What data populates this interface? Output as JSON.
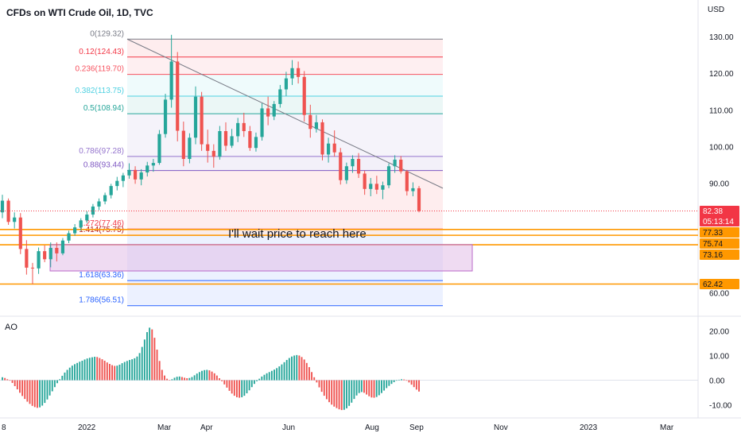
{
  "chart_data": {
    "type": "candlestick",
    "title": "CFDs on WTI Crude Oil, 1D, TVC",
    "currency": "USD",
    "colors": {
      "up": "#26a69a",
      "down": "#ef5350",
      "orange": "#ff9800",
      "last": "#f23645"
    },
    "price_axis": {
      "range": [
        54.5,
        133.5
      ],
      "ticks": [
        "60.00",
        "90.00",
        "100.00",
        "110.00",
        "120.00",
        "130.00"
      ]
    },
    "time_axis": {
      "labels": [
        "8",
        "2022",
        "Mar",
        "Apr",
        "Jun",
        "Aug",
        "Sep",
        "Nov",
        "2023",
        "Mar"
      ]
    },
    "fibonacci": [
      {
        "label": "0(129.32)",
        "value": 129.32,
        "color": "#787b86"
      },
      {
        "label": "0.12(124.43)",
        "value": 124.43,
        "color": "#f23645"
      },
      {
        "label": "0.236(119.70)",
        "value": 119.7,
        "color": "#f7525f"
      },
      {
        "label": "0.382(113.75)",
        "value": 113.75,
        "color": "#4dd0e1"
      },
      {
        "label": "0.5(108.94)",
        "value": 108.94,
        "color": "#26a69a"
      },
      {
        "label": "0.786(97.28)",
        "value": 97.28,
        "color": "#9575cd"
      },
      {
        "label": "0.88(93.44)",
        "value": 93.44,
        "color": "#7e57c2"
      },
      {
        "label": "1.272(77.46)",
        "value": 77.46,
        "color": "#f23645"
      },
      {
        "label": "1.414(75.75)",
        "value": 75.75,
        "color": "#b71c1c"
      },
      {
        "label": "1.618(63.36)",
        "value": 63.36,
        "color": "#2962ff"
      },
      {
        "label": "1.786(56.51)",
        "value": 56.51,
        "color": "#2962ff"
      }
    ],
    "horizontal_levels": [
      77.33,
      75.74,
      73.16,
      62.42
    ],
    "price_tags": [
      {
        "value": 82.38,
        "label": "82.38",
        "sublabel": "05:13:14",
        "color": "#f23645"
      },
      {
        "value": 77.33,
        "label": "77.33",
        "color": "#ff9800"
      },
      {
        "value": 75.74,
        "label": "75.74",
        "color": "#ff9800"
      },
      {
        "value": 73.16,
        "label": "73.16",
        "color": "#ff9800"
      },
      {
        "value": 62.42,
        "label": "62.42",
        "color": "#ff9800"
      }
    ],
    "annotation": "I'll wait price to reach here",
    "zone": {
      "from": 66.0,
      "to": 73.2,
      "color": "#e1bee7"
    },
    "trendline": {
      "from": 129.32,
      "to": 88.6
    },
    "candles": [
      [
        82.0,
        86.8,
        80.4,
        85.2
      ],
      [
        85.2,
        85.8,
        78.6,
        79.4
      ],
      [
        79.4,
        82.0,
        77.6,
        80.6
      ],
      [
        80.6,
        81.8,
        70.6,
        72.0
      ],
      [
        72.0,
        74.4,
        65.0,
        66.9
      ],
      [
        66.9,
        68.2,
        62.4,
        66.7
      ],
      [
        66.7,
        72.4,
        65.2,
        71.4
      ],
      [
        71.4,
        73.0,
        68.4,
        69.2
      ],
      [
        69.2,
        73.8,
        67.0,
        72.3
      ],
      [
        72.3,
        73.8,
        68.6,
        70.8
      ],
      [
        70.8,
        75.0,
        70.3,
        74.3
      ],
      [
        74.3,
        77.0,
        73.6,
        76.3
      ],
      [
        76.3,
        78.8,
        75.6,
        77.9
      ],
      [
        77.9,
        80.4,
        77.0,
        79.8
      ],
      [
        79.8,
        82.3,
        79.1,
        81.4
      ],
      [
        81.4,
        84.3,
        80.6,
        83.6
      ],
      [
        83.6,
        85.8,
        82.6,
        85.0
      ],
      [
        85.0,
        87.4,
        84.2,
        86.7
      ],
      [
        86.7,
        89.8,
        85.8,
        89.2
      ],
      [
        89.2,
        91.7,
        88.0,
        90.6
      ],
      [
        90.6,
        92.8,
        88.9,
        92.1
      ],
      [
        92.1,
        95.4,
        91.2,
        93.6
      ],
      [
        93.6,
        94.6,
        89.8,
        91.0
      ],
      [
        91.0,
        93.8,
        89.4,
        92.9
      ],
      [
        92.9,
        95.8,
        91.8,
        94.8
      ],
      [
        94.8,
        96.6,
        93.1,
        95.5
      ],
      [
        95.5,
        104.5,
        95.0,
        103.4
      ],
      [
        103.4,
        114.4,
        102.4,
        112.8
      ],
      [
        112.8,
        130.5,
        110.6,
        123.2
      ],
      [
        123.2,
        125.8,
        101.4,
        104.3
      ],
      [
        104.3,
        106.8,
        94.6,
        96.6
      ],
      [
        96.6,
        103.6,
        95.4,
        102.4
      ],
      [
        102.4,
        116.4,
        100.6,
        113.6
      ],
      [
        113.6,
        114.9,
        98.8,
        100.6
      ],
      [
        100.6,
        104.6,
        95.6,
        98.8
      ],
      [
        98.8,
        100.6,
        94.2,
        97.2
      ],
      [
        97.2,
        105.6,
        96.4,
        104.2
      ],
      [
        104.2,
        106.6,
        98.8,
        100.2
      ],
      [
        100.2,
        104.8,
        99.6,
        102.8
      ],
      [
        102.8,
        107.8,
        101.2,
        106.4
      ],
      [
        106.4,
        109.2,
        102.6,
        104.2
      ],
      [
        104.2,
        105.6,
        98.8,
        99.6
      ],
      [
        99.6,
        103.8,
        98.6,
        102.6
      ],
      [
        102.6,
        111.8,
        101.6,
        110.4
      ],
      [
        110.4,
        113.6,
        105.8,
        108.2
      ],
      [
        108.2,
        112.4,
        107.2,
        111.6
      ],
      [
        111.6,
        116.8,
        110.6,
        115.6
      ],
      [
        115.6,
        120.4,
        113.8,
        118.6
      ],
      [
        118.6,
        123.6,
        116.8,
        121.4
      ],
      [
        121.4,
        123.2,
        117.2,
        119.0
      ],
      [
        119.0,
        120.6,
        106.8,
        108.6
      ],
      [
        108.6,
        111.4,
        102.4,
        104.8
      ],
      [
        104.8,
        108.6,
        103.8,
        106.6
      ],
      [
        106.6,
        107.4,
        96.2,
        97.8
      ],
      [
        97.8,
        102.4,
        95.6,
        100.8
      ],
      [
        100.8,
        104.4,
        97.2,
        98.4
      ],
      [
        98.4,
        99.6,
        89.6,
        90.8
      ],
      [
        90.8,
        95.6,
        89.8,
        94.6
      ],
      [
        94.6,
        97.6,
        92.8,
        96.6
      ],
      [
        96.6,
        98.2,
        91.4,
        92.6
      ],
      [
        92.6,
        93.4,
        86.8,
        88.4
      ],
      [
        88.4,
        91.4,
        86.4,
        89.8
      ],
      [
        89.8,
        92.0,
        87.0,
        88.2
      ],
      [
        88.2,
        90.4,
        85.6,
        89.4
      ],
      [
        89.4,
        95.4,
        88.6,
        94.6
      ],
      [
        94.6,
        97.6,
        92.8,
        96.4
      ],
      [
        96.4,
        97.4,
        92.6,
        93.2
      ],
      [
        93.2,
        93.6,
        86.6,
        87.8
      ],
      [
        87.8,
        90.2,
        86.4,
        88.6
      ],
      [
        88.6,
        89.2,
        82.0,
        82.4
      ]
    ],
    "awesome_oscillator": [
      1.2,
      0.9,
      0.4,
      -0.2,
      -1.1,
      -2.4,
      -3.7,
      -5.1,
      -6.4,
      -7.6,
      -8.7,
      -9.6,
      -10.4,
      -10.9,
      -11.2,
      -11.0,
      -10.3,
      -9.2,
      -7.8,
      -6.2,
      -4.5,
      -2.8,
      -1.2,
      0.4,
      1.8,
      3.1,
      4.2,
      5.1,
      5.9,
      6.5,
      7.0,
      7.5,
      7.9,
      8.4,
      8.8,
      9.1,
      9.3,
      9.5,
      9.4,
      9.0,
      8.5,
      7.9,
      7.2,
      6.6,
      6.1,
      5.8,
      5.9,
      6.3,
      6.9,
      7.4,
      7.8,
      8.2,
      8.5,
      8.9,
      9.6,
      11.0,
      13.5,
      16.5,
      19.5,
      21.3,
      20.6,
      17.2,
      12.4,
      7.8,
      4.2,
      1.9,
      0.6,
      0.1,
      0.4,
      1.0,
      1.4,
      1.5,
      1.3,
      1.0,
      0.8,
      0.9,
      1.3,
      2.0,
      2.7,
      3.3,
      3.8,
      4.1,
      4.2,
      4.0,
      3.5,
      2.8,
      1.9,
      0.8,
      -0.4,
      -1.7,
      -3.0,
      -4.3,
      -5.4,
      -6.3,
      -6.9,
      -7.1,
      -6.9,
      -6.3,
      -5.3,
      -4.1,
      -2.8,
      -1.5,
      -0.4,
      0.6,
      1.5,
      2.2,
      2.8,
      3.3,
      3.8,
      4.3,
      4.9,
      5.6,
      6.4,
      7.3,
      8.2,
      9.0,
      9.6,
      10.0,
      10.2,
      10.0,
      9.4,
      8.4,
      7.0,
      5.3,
      3.3,
      1.2,
      -0.9,
      -2.9,
      -4.7,
      -6.3,
      -7.7,
      -8.9,
      -9.9,
      -10.7,
      -11.3,
      -11.8,
      -12.1,
      -12.0,
      -11.4,
      -10.4,
      -9.1,
      -7.6,
      -6.2,
      -5.2,
      -4.8,
      -5.1,
      -5.8,
      -6.5,
      -7.0,
      -7.1,
      -6.8,
      -6.1,
      -5.2,
      -4.2,
      -3.2,
      -2.3,
      -1.5,
      -0.8,
      -0.2,
      0.2,
      0.4,
      0.3,
      -0.2,
      -0.9,
      -1.8,
      -2.8,
      -3.8,
      -4.6
    ],
    "oscillator_axis": {
      "name": "AO",
      "range": [
        -14,
        24
      ],
      "ticks": [
        "20.00",
        "10.00",
        "0.00",
        "-10.00"
      ]
    }
  }
}
